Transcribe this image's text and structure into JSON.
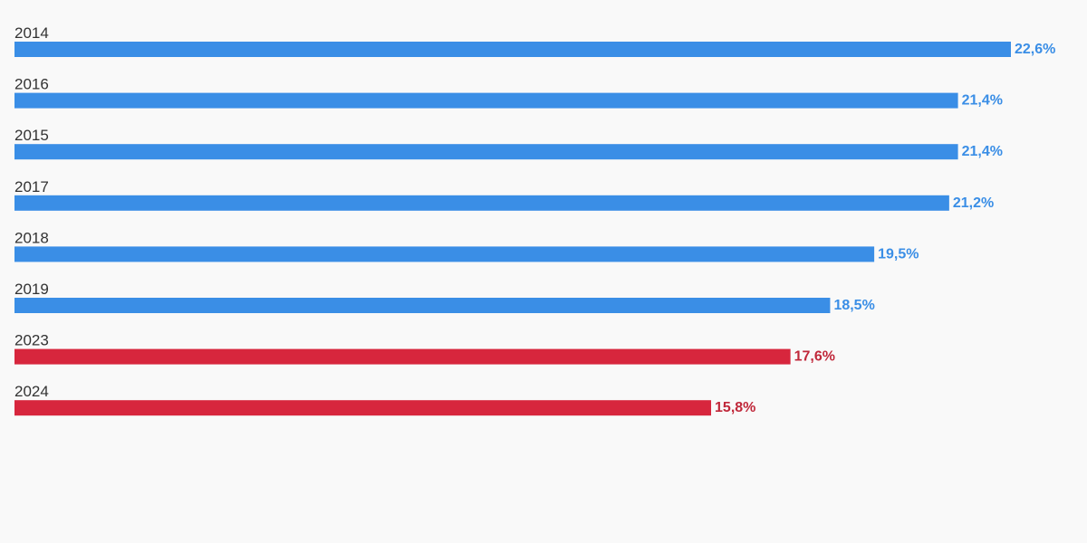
{
  "chart_data": {
    "type": "bar",
    "orientation": "horizontal",
    "categories": [
      "2014",
      "2016",
      "2015",
      "2017",
      "2018",
      "2019",
      "2023",
      "2024"
    ],
    "values": [
      22.6,
      21.4,
      21.4,
      21.2,
      19.5,
      18.5,
      17.6,
      15.8
    ],
    "value_labels": [
      "22,6%",
      "21,4%",
      "21,4%",
      "21,2%",
      "19,5%",
      "18,5%",
      "17,6%",
      "15,8%"
    ],
    "bar_colors": [
      "#3a8ee6",
      "#3a8ee6",
      "#3a8ee6",
      "#3a8ee6",
      "#3a8ee6",
      "#3a8ee6",
      "#d7263d",
      "#d7263d"
    ],
    "label_colors": [
      "#3a8ee6",
      "#3a8ee6",
      "#3a8ee6",
      "#3a8ee6",
      "#3a8ee6",
      "#3a8ee6",
      "#c0283a",
      "#c0283a"
    ],
    "xlim": [
      0,
      22.6
    ],
    "grid": false,
    "legend": "none"
  },
  "colors": {
    "background": "#f9f9f9",
    "category_text": "#333333",
    "blue": "#3a8ee6",
    "red": "#d7263d"
  }
}
